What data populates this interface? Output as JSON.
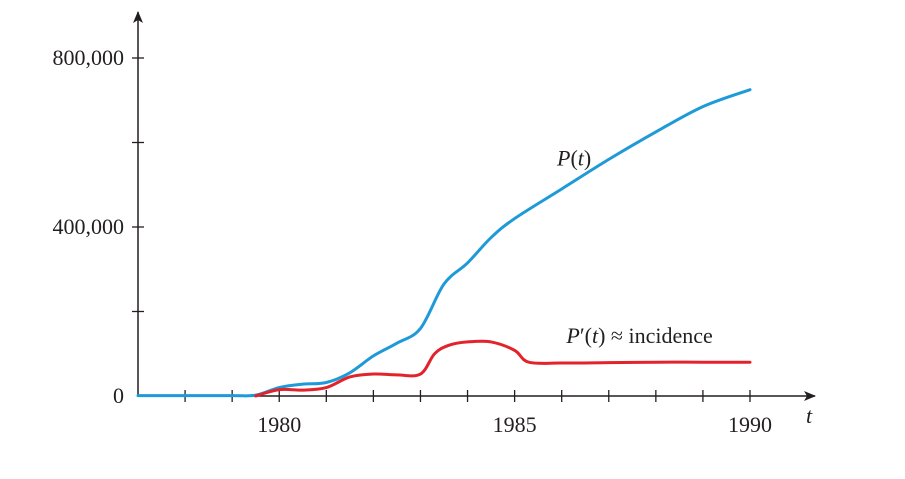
{
  "chart_data": {
    "type": "line",
    "title": "",
    "xlabel": "t",
    "ylabel": "",
    "xlim": [
      1977,
      1991
    ],
    "ylim": [
      0,
      800000
    ],
    "x_ticks": [
      1977,
      1978,
      1979,
      1980,
      1981,
      1982,
      1983,
      1984,
      1985,
      1986,
      1987,
      1988,
      1989,
      1990
    ],
    "x_tick_labels": [
      {
        "value": 1980,
        "label": "1980"
      },
      {
        "value": 1985,
        "label": "1985"
      },
      {
        "value": 1990,
        "label": "1990"
      }
    ],
    "y_ticks": [
      0,
      200000,
      400000,
      600000,
      800000
    ],
    "y_tick_labels": [
      {
        "value": 0,
        "label": "0"
      },
      {
        "value": 400000,
        "label": "400,000"
      },
      {
        "value": 800000,
        "label": "800,000"
      }
    ],
    "grid": false,
    "series": [
      {
        "name": "P(t)",
        "color": "#1f9ad8",
        "x": [
          1977,
          1978,
          1979,
          1979.5,
          1980,
          1980.5,
          1981,
          1981.5,
          1982,
          1982.5,
          1983,
          1983.5,
          1984,
          1984.5,
          1985,
          1986,
          1987,
          1988,
          1989,
          1990
        ],
        "y": [
          1000,
          1000,
          1000,
          2000,
          20000,
          28000,
          32000,
          55000,
          95000,
          125000,
          160000,
          265000,
          315000,
          375000,
          420000,
          490000,
          560000,
          625000,
          685000,
          725000
        ]
      },
      {
        "name": "P′(t) ≈ incidence",
        "color": "#e2232b",
        "x": [
          1979.5,
          1980,
          1980.5,
          1981,
          1981.5,
          1982,
          1982.5,
          1983,
          1983.3,
          1983.6,
          1984,
          1984.5,
          1985,
          1985.3,
          1986,
          1987,
          1988,
          1989,
          1990
        ],
        "y": [
          0,
          15000,
          14000,
          20000,
          45000,
          52000,
          50000,
          52000,
          100000,
          120000,
          128000,
          128000,
          108000,
          80000,
          78000,
          79000,
          80000,
          80000,
          80000
        ]
      }
    ],
    "annotations": [
      {
        "text": "P(t)",
        "series": 0,
        "x": 1985.9,
        "y": 545000
      },
      {
        "text": "P′(t) ≈ incidence",
        "series": 1,
        "x": 1986.1,
        "y": 125000
      }
    ]
  }
}
